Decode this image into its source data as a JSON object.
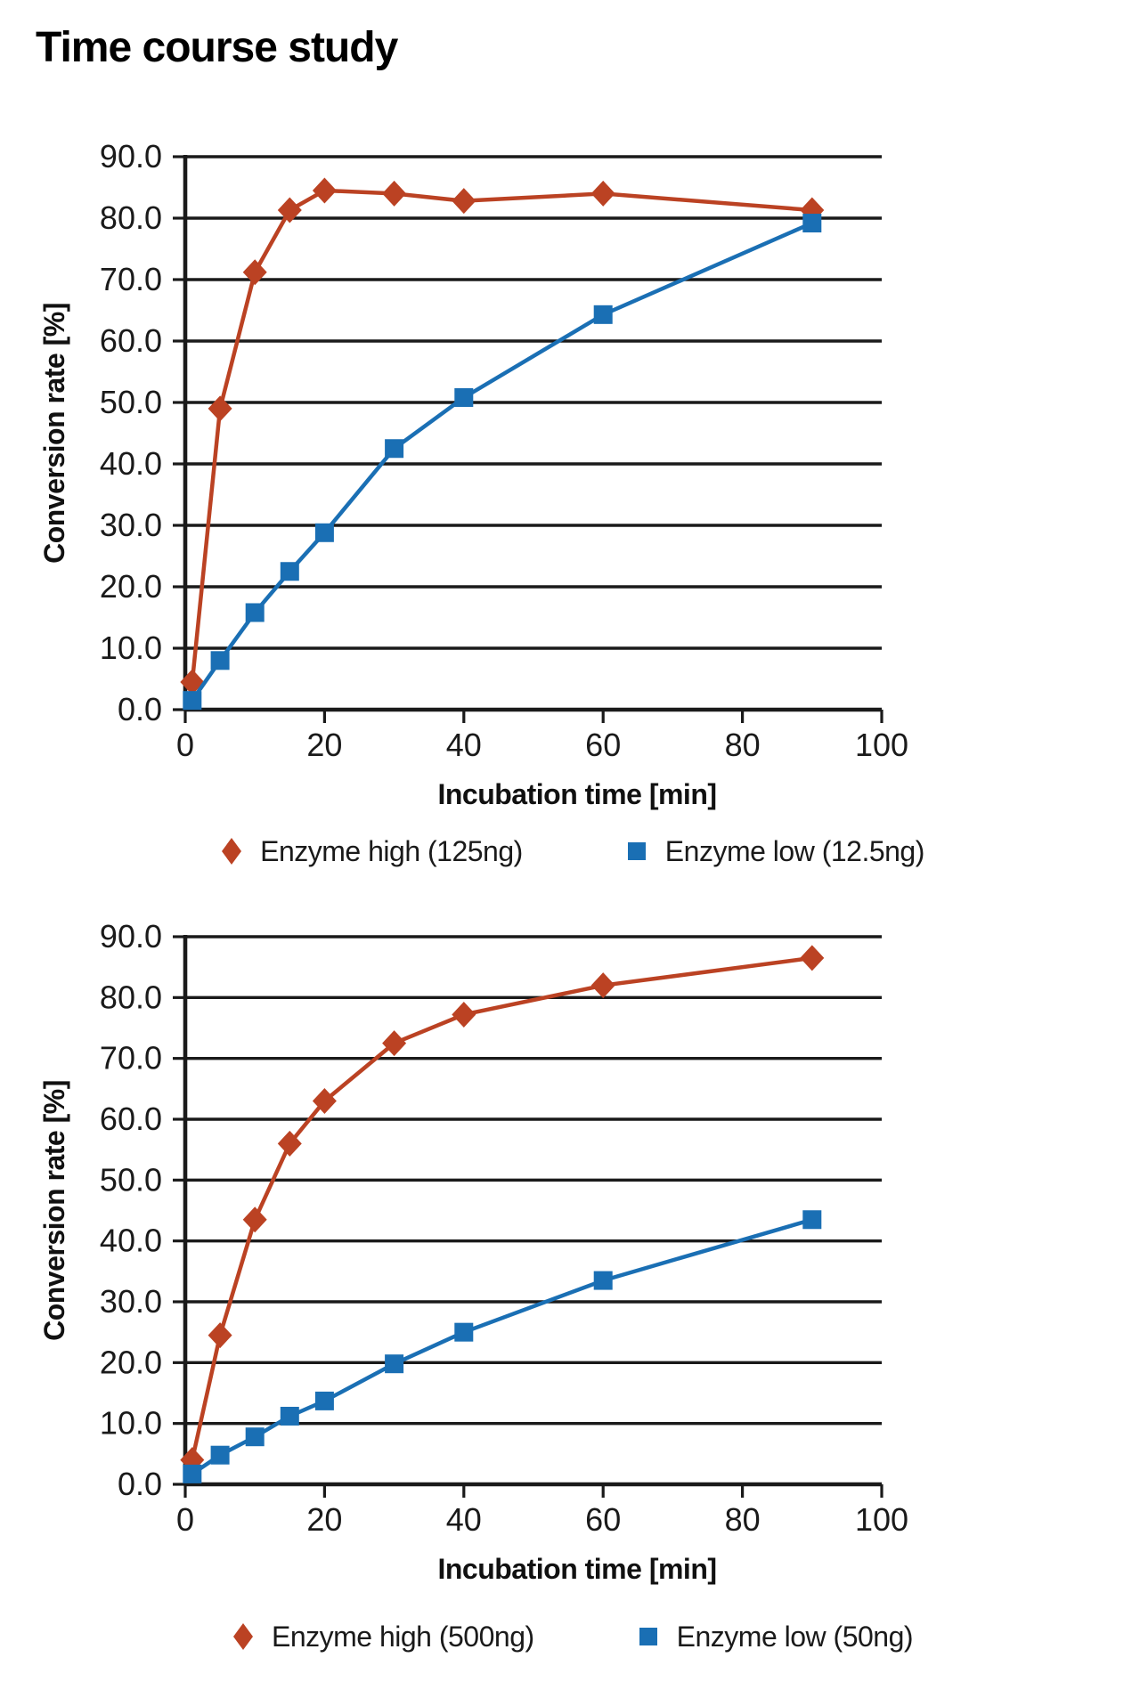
{
  "page": {
    "title": "Time course study"
  },
  "chart_data": [
    {
      "type": "line",
      "x": [
        1,
        5,
        10,
        15,
        20,
        30,
        40,
        60,
        90
      ],
      "series": [
        {
          "name": "Enzyme high (125ng)",
          "marker": "diamond",
          "color": "#bb4223",
          "values": [
            4.5,
            49.0,
            71.2,
            81.3,
            84.5,
            84.0,
            82.8,
            84.0,
            81.3
          ]
        },
        {
          "name": "Enzyme low (12.5ng)",
          "marker": "square",
          "color": "#1a6fb4",
          "values": [
            1.5,
            8.0,
            15.8,
            22.5,
            28.8,
            42.5,
            50.8,
            64.3,
            79.2
          ]
        }
      ],
      "xlabel": "Incubation time [min]",
      "ylabel": "Conversion rate [%]",
      "xlim": [
        0,
        100
      ],
      "ylim": [
        0,
        90
      ],
      "xticks": [
        0,
        20,
        40,
        60,
        80,
        100
      ],
      "yticks": [
        0,
        10,
        20,
        30,
        40,
        50,
        60,
        70,
        80,
        90
      ],
      "ytick_decimals": 1,
      "grid": "horizontal",
      "legend_position": "bottom"
    },
    {
      "type": "line",
      "x": [
        1,
        5,
        10,
        15,
        20,
        30,
        40,
        60,
        90
      ],
      "series": [
        {
          "name": "Enzyme high (500ng)",
          "marker": "diamond",
          "color": "#bb4223",
          "values": [
            4.0,
            24.5,
            43.5,
            56.0,
            63.0,
            72.5,
            77.2,
            82.0,
            86.5
          ]
        },
        {
          "name": "Enzyme low (50ng)",
          "marker": "square",
          "color": "#1a6fb4",
          "values": [
            1.7,
            4.8,
            7.8,
            11.2,
            13.7,
            19.8,
            25.0,
            33.5,
            43.5
          ]
        }
      ],
      "xlabel": "Incubation time [min]",
      "ylabel": "Conversion rate [%]",
      "xlim": [
        0,
        100
      ],
      "ylim": [
        0,
        90
      ],
      "xticks": [
        0,
        20,
        40,
        60,
        80,
        100
      ],
      "yticks": [
        0,
        10,
        20,
        30,
        40,
        50,
        60,
        70,
        80,
        90
      ],
      "ytick_decimals": 1,
      "grid": "horizontal",
      "legend_position": "bottom"
    }
  ]
}
